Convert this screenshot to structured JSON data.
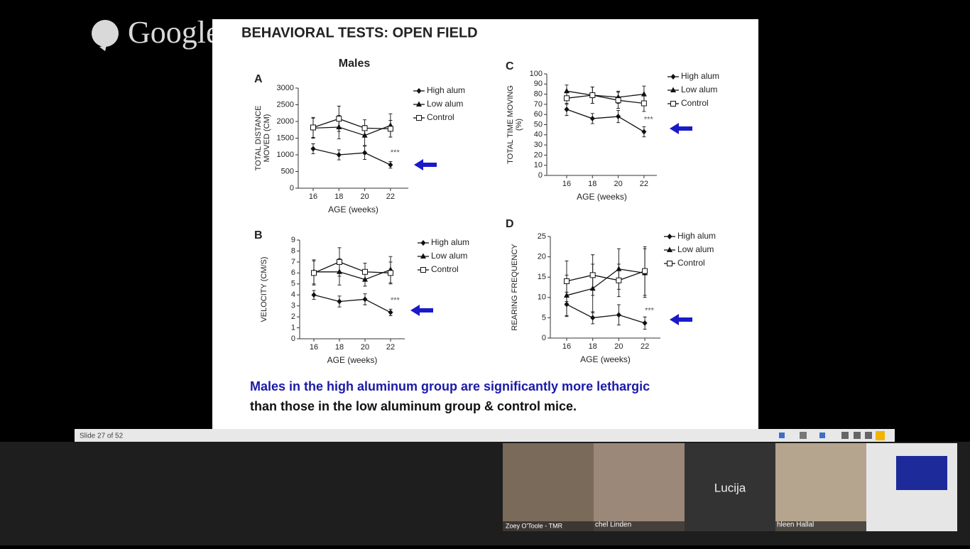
{
  "app": {
    "logo": "Google+",
    "status": "Slide 27 of 52"
  },
  "slide": {
    "title": "BEHAVIORAL TESTS: OPEN FIELD",
    "subtitle": "Males",
    "caption": [
      "Males in the high aluminum group are significantly more lethargic",
      "than those in the low aluminum group & control mice."
    ]
  },
  "participants": [
    {
      "name": "Zoey O'Toole - TMR"
    },
    {
      "name": "chel Linden"
    },
    {
      "name": "Lucija"
    },
    {
      "name": "hleen Hallal"
    }
  ],
  "chart_data": [
    {
      "type": "line",
      "panel": "A",
      "ylabel": [
        "TOTAL DISTANCE",
        "MOVED (CM)"
      ],
      "xlabel": "AGE (weeks)",
      "categories": [
        "16",
        "18",
        "20",
        "22"
      ],
      "ylim": [
        0,
        3000
      ],
      "yticks": [
        0,
        500,
        1000,
        1500,
        2000,
        2500,
        3000
      ],
      "annotation": "***",
      "series": [
        {
          "name": "High alum",
          "marker": "diamond",
          "color": "#111111",
          "values": [
            1180,
            1000,
            1060,
            700
          ],
          "errors": [
            150,
            150,
            200,
            100
          ]
        },
        {
          "name": "Low alum",
          "marker": "triangle",
          "color": "#111111",
          "values": [
            1800,
            1830,
            1580,
            1880
          ],
          "errors": [
            300,
            350,
            300,
            350
          ]
        },
        {
          "name": "Control",
          "marker": "square-open",
          "color": "#111111",
          "values": [
            1820,
            2080,
            1800,
            1780
          ],
          "errors": [
            300,
            380,
            250,
            250
          ]
        }
      ]
    },
    {
      "type": "line",
      "panel": "C",
      "ylabel": [
        "TOTAL TIME MOVING",
        "(%)"
      ],
      "xlabel": "AGE (weeks)",
      "categories": [
        "16",
        "18",
        "20",
        "22"
      ],
      "ylim": [
        0,
        100
      ],
      "yticks": [
        0,
        10,
        20,
        30,
        40,
        50,
        60,
        70,
        80,
        90,
        100
      ],
      "annotation": "***",
      "series": [
        {
          "name": "High alum",
          "marker": "diamond",
          "color": "#111111",
          "values": [
            65,
            56,
            58,
            43
          ],
          "errors": [
            6,
            5,
            6,
            5
          ]
        },
        {
          "name": "Low alum",
          "marker": "triangle",
          "color": "#111111",
          "values": [
            83,
            79,
            77,
            80
          ],
          "errors": [
            6,
            8,
            6,
            8
          ]
        },
        {
          "name": "Control",
          "marker": "square-open",
          "color": "#111111",
          "values": [
            76,
            79,
            74,
            71
          ],
          "errors": [
            6,
            8,
            8,
            8
          ]
        }
      ]
    },
    {
      "type": "line",
      "panel": "B",
      "ylabel": [
        "VELOCITY (CM/S)"
      ],
      "xlabel": "AGE (weeks)",
      "categories": [
        "16",
        "18",
        "20",
        "22"
      ],
      "ylim": [
        0,
        9
      ],
      "yticks": [
        0,
        1,
        2,
        3,
        4,
        5,
        6,
        7,
        8,
        9
      ],
      "annotation": "***",
      "series": [
        {
          "name": "High alum",
          "marker": "diamond",
          "color": "#111111",
          "values": [
            4.0,
            3.4,
            3.6,
            2.4
          ],
          "errors": [
            0.4,
            0.5,
            0.5,
            0.3
          ]
        },
        {
          "name": "Low alum",
          "marker": "triangle",
          "color": "#111111",
          "values": [
            6.1,
            6.1,
            5.4,
            6.3
          ],
          "errors": [
            1.1,
            1.2,
            0.6,
            1.2
          ]
        },
        {
          "name": "Control",
          "marker": "square-open",
          "color": "#111111",
          "values": [
            6.0,
            7.0,
            6.1,
            6.0
          ],
          "errors": [
            1.1,
            1.3,
            0.8,
            1.0
          ]
        }
      ]
    },
    {
      "type": "line",
      "panel": "D",
      "ylabel": [
        "REARING FREQUENCY"
      ],
      "xlabel": "AGE (weeks)",
      "categories": [
        "16",
        "18",
        "20",
        "22"
      ],
      "ylim": [
        0,
        25
      ],
      "yticks": [
        0,
        5,
        10,
        15,
        20,
        25
      ],
      "annotation": "***",
      "series": [
        {
          "name": "High alum",
          "marker": "diamond",
          "color": "#111111",
          "values": [
            8.3,
            5.0,
            5.7,
            3.7
          ],
          "errors": [
            3,
            1.5,
            2.5,
            1.5
          ]
        },
        {
          "name": "Low alum",
          "marker": "triangle",
          "color": "#111111",
          "values": [
            10.5,
            12.2,
            17.0,
            16.0
          ],
          "errors": [
            5,
            6,
            5,
            6
          ]
        },
        {
          "name": "Control",
          "marker": "square-open",
          "color": "#111111",
          "values": [
            14.0,
            15.5,
            14.2,
            16.5
          ],
          "errors": [
            5,
            5,
            4,
            6
          ]
        }
      ]
    }
  ]
}
